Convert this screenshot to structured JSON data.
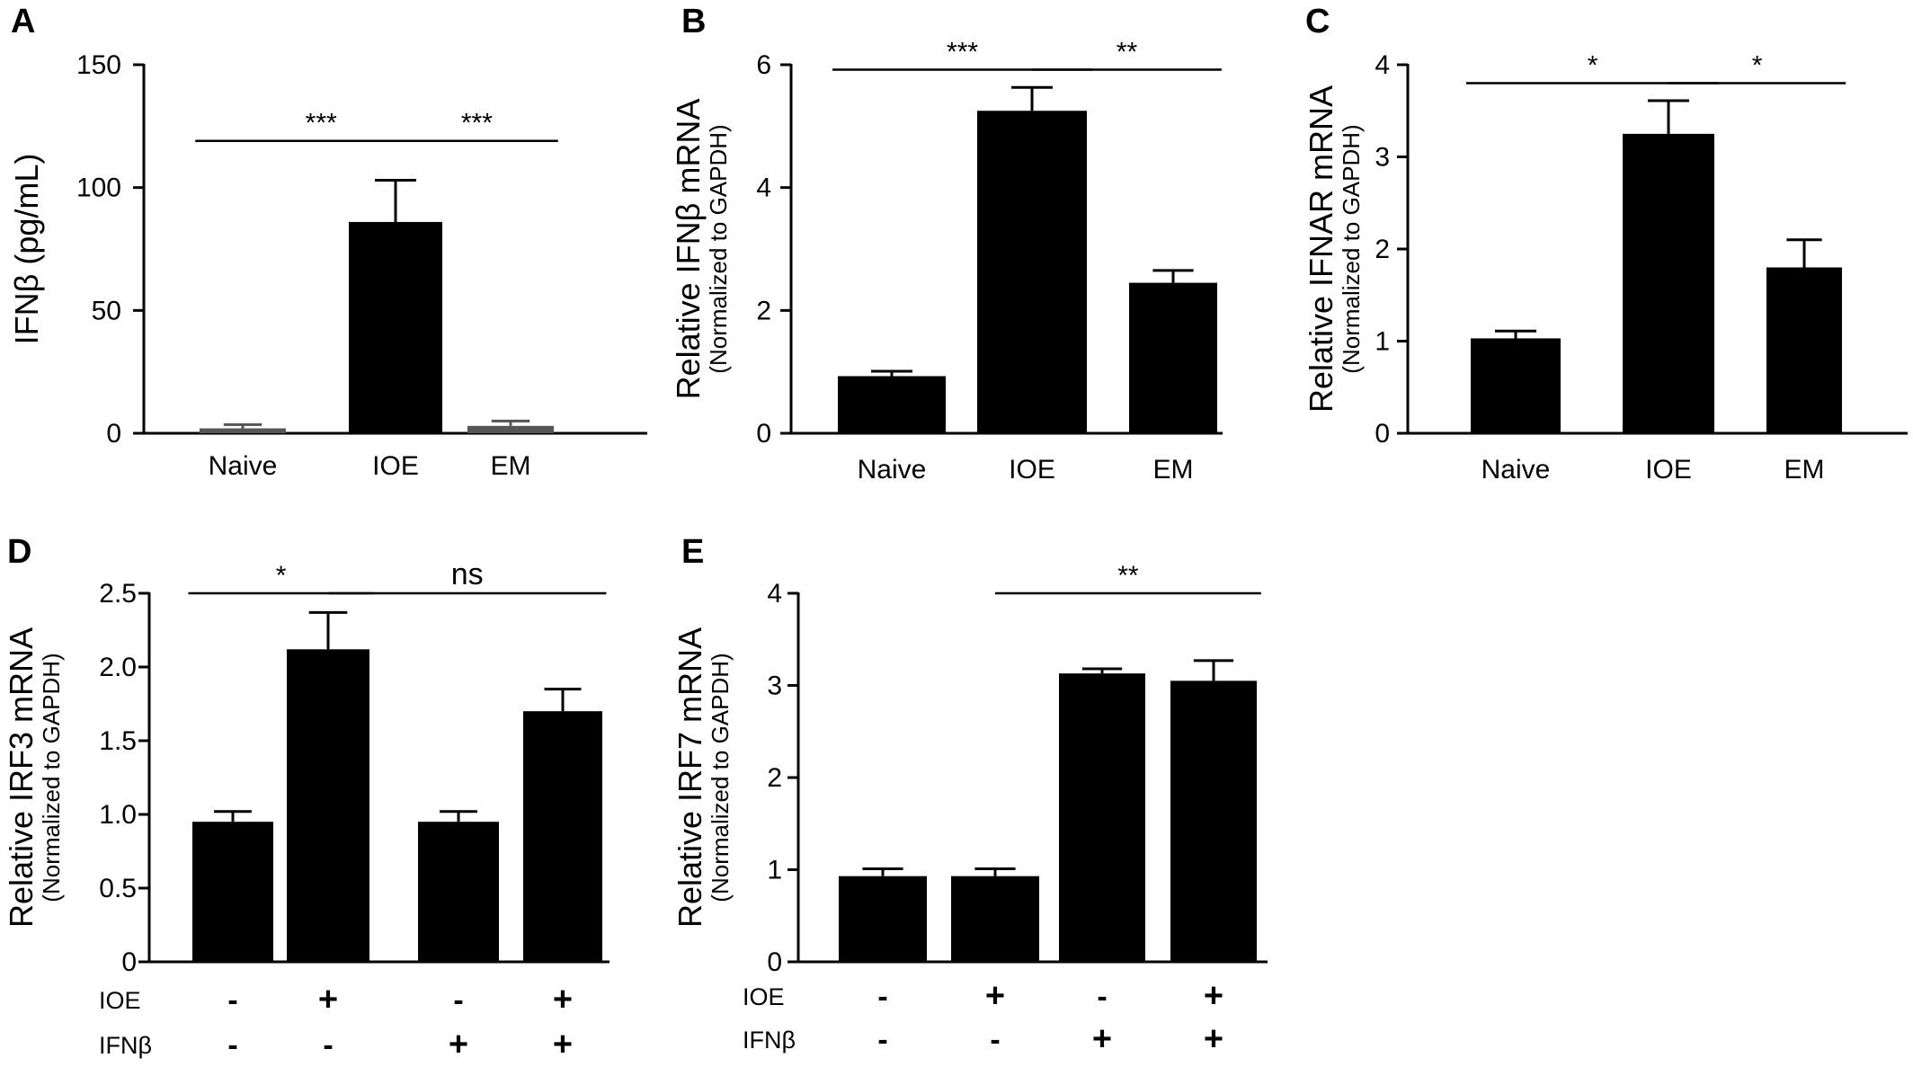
{
  "chart_data": [
    {
      "panel": "A",
      "type": "bar",
      "ylabel": "IFNβ (pg/mL)",
      "ylabel_sub": "",
      "ylim": [
        0,
        150
      ],
      "yticks": [
        "0",
        "50",
        "100",
        "150"
      ],
      "categories": [
        "Naive",
        "IOE",
        "EM"
      ],
      "values": [
        2,
        86,
        3
      ],
      "errors": [
        1.5,
        17,
        2
      ],
      "significance": [
        {
          "from": 0,
          "to": 1,
          "y": 119,
          "label": "***"
        },
        {
          "from": 1,
          "to": 2,
          "y": 119,
          "label": "***"
        }
      ]
    },
    {
      "panel": "B",
      "type": "bar",
      "ylabel": "Relative IFNβ mRNA",
      "ylabel_sub": "(Normalized to GAPDH)",
      "ylim": [
        0,
        6
      ],
      "yticks": [
        "0",
        "2",
        "4",
        "6"
      ],
      "categories": [
        "Naive",
        "IOE",
        "EM"
      ],
      "values": [
        0.93,
        5.25,
        2.45
      ],
      "errors": [
        0.08,
        0.38,
        0.2
      ],
      "significance": [
        {
          "from": 0,
          "to": 1,
          "y": 5.92,
          "label": "***"
        },
        {
          "from": 1,
          "to": 2,
          "y": 5.92,
          "label": "**"
        }
      ]
    },
    {
      "panel": "C",
      "type": "bar",
      "ylabel": "Relative IFNAR mRNA",
      "ylabel_sub": "(Normalized to GAPDH)",
      "ylim": [
        0,
        4
      ],
      "yticks": [
        "0",
        "1",
        "2",
        "3",
        "4"
      ],
      "categories": [
        "Naive",
        "IOE",
        "EM"
      ],
      "values": [
        1.03,
        3.25,
        1.8
      ],
      "errors": [
        0.08,
        0.36,
        0.3
      ],
      "significance": [
        {
          "from": 0,
          "to": 1,
          "y": 3.8,
          "label": "*"
        },
        {
          "from": 1,
          "to": 2,
          "y": 3.8,
          "label": "*"
        }
      ]
    },
    {
      "panel": "D",
      "type": "bar",
      "ylabel": "Relative IRF3 mRNA",
      "ylabel_sub": "(Normalized to GAPDH)",
      "ylim": [
        0,
        2.5
      ],
      "yticks": [
        "0",
        "0.5",
        "1.0",
        "1.5",
        "2.0",
        "2.5"
      ],
      "categories": [
        "",
        "",
        "",
        ""
      ],
      "values": [
        0.95,
        2.12,
        0.95,
        1.7
      ],
      "errors": [
        0.07,
        0.25,
        0.07,
        0.15
      ],
      "treatments": [
        {
          "name": "IOE",
          "signs": [
            "-",
            "+",
            "-",
            "+"
          ]
        },
        {
          "name": "IFNβ",
          "signs": [
            "-",
            "-",
            "+",
            "+"
          ]
        }
      ],
      "significance": [
        {
          "from": 0,
          "to": 1,
          "y": 2.5,
          "label": "*"
        },
        {
          "from": 1,
          "to": 3,
          "y": 2.5,
          "label": "ns"
        }
      ]
    },
    {
      "panel": "E",
      "type": "bar",
      "ylabel": "Relative IRF7 mRNA",
      "ylabel_sub": "(Normalized to GAPDH)",
      "ylim": [
        0,
        4
      ],
      "yticks": [
        "0",
        "1",
        "2",
        "3",
        "4"
      ],
      "categories": [
        "",
        "",
        "",
        ""
      ],
      "values": [
        0.93,
        0.93,
        3.13,
        3.05
      ],
      "errors": [
        0.08,
        0.08,
        0.05,
        0.22
      ],
      "treatments": [
        {
          "name": "IOE",
          "signs": [
            "-",
            "+",
            "-",
            "+"
          ]
        },
        {
          "name": "IFNβ",
          "signs": [
            "-",
            "-",
            "+",
            "+"
          ]
        }
      ],
      "significance": [
        {
          "from": 1,
          "to": 3,
          "y": 4.0,
          "label": "**"
        }
      ]
    }
  ],
  "colors": {
    "bar": "#000000",
    "axis": "#000000"
  }
}
